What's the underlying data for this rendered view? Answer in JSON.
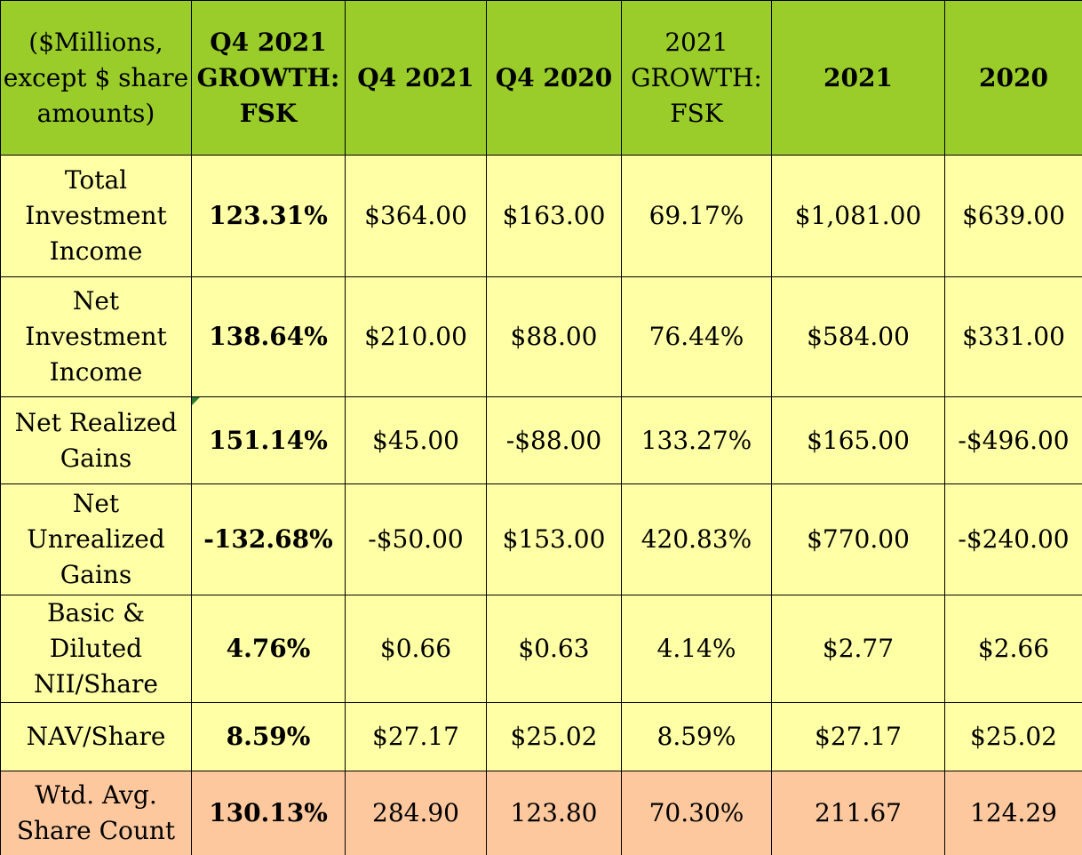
{
  "header": {
    "c0": "($Millions, except $ share amounts)",
    "c1": "Q4 2021 GROWTH: FSK",
    "c2": "Q4 2021",
    "c3": "Q4 2020",
    "c4": "2021 GROWTH: FSK",
    "c5": "2021",
    "c6": "2020"
  },
  "rows": [
    {
      "label": "Total Investment Income",
      "q4growth": "123.31%",
      "q4_2021": "$364.00",
      "q4_2020": "$163.00",
      "growth_2021": "69.17%",
      "y2021": "$1,081.00",
      "y2020": "$639.00"
    },
    {
      "label": "Net Investment Income",
      "q4growth": "138.64%",
      "q4_2021": "$210.00",
      "q4_2020": "$88.00",
      "growth_2021": "76.44%",
      "y2021": "$584.00",
      "y2020": "$331.00"
    },
    {
      "label": "Net Realized Gains",
      "q4growth": "151.14%",
      "q4_2021": "$45.00",
      "q4_2020": "-$88.00",
      "growth_2021": "133.27%",
      "y2021": "$165.00",
      "y2020": "-$496.00"
    },
    {
      "label": "Net Unrealized Gains",
      "q4growth": "-132.68%",
      "q4_2021": "-$50.00",
      "q4_2020": "$153.00",
      "growth_2021": "420.83%",
      "y2021": "$770.00",
      "y2020": "-$240.00"
    },
    {
      "label": "Basic & Diluted NII/Share",
      "q4growth": "4.76%",
      "q4_2021": "$0.66",
      "q4_2020": "$0.63",
      "growth_2021": "4.14%",
      "y2021": "$2.77",
      "y2020": "$2.66"
    },
    {
      "label": "NAV/Share",
      "q4growth": "8.59%",
      "q4_2021": "$27.17",
      "q4_2020": "$25.02",
      "growth_2021": "8.59%",
      "y2021": "$27.17",
      "y2020": "$25.02"
    },
    {
      "label": "Wtd. Avg. Share Count",
      "q4growth": "130.13%",
      "q4_2021": "284.90",
      "q4_2020": "123.80",
      "growth_2021": "70.30%",
      "y2021": "211.67",
      "y2020": "124.29"
    }
  ],
  "colors": {
    "header_bg": "#9acd2a",
    "row_bg": "#ffffa6",
    "last_row_bg": "#fdc89e",
    "comment_marker": "#2e7d32"
  }
}
